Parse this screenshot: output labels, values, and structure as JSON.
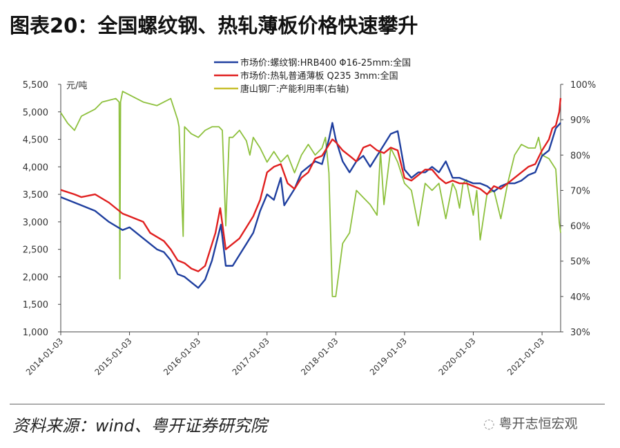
{
  "title": "图表20：全国螺纹钢、热轧薄板价格快速攀升",
  "source": "资料来源：wind、粤开证券研究院",
  "watermark": "粤开志恒宏观",
  "chart_data": {
    "type": "line",
    "title": "图表20：全国螺纹钢、热轧薄板价格快速攀升",
    "ylabel": "元/吨",
    "ylim": [
      1000,
      5500
    ],
    "y2lim": [
      30,
      100
    ],
    "yticks": [
      "1,000",
      "1,500",
      "2,000",
      "2,500",
      "3,000",
      "3,500",
      "4,000",
      "4,500",
      "5,000",
      "5,500"
    ],
    "y2ticks": [
      "30%",
      "40%",
      "50%",
      "60%",
      "70%",
      "80%",
      "90%",
      "100%"
    ],
    "xticks": [
      {
        "label": "2014-01-03",
        "t": 2014.0
      },
      {
        "label": "2015-01-03",
        "t": 2015.0
      },
      {
        "label": "2016-01-03",
        "t": 2016.0
      },
      {
        "label": "2017-01-03",
        "t": 2017.0
      },
      {
        "label": "2018-01-03",
        "t": 2018.0
      },
      {
        "label": "2019-01-03",
        "t": 2019.0
      },
      {
        "label": "2020-01-03",
        "t": 2020.0
      },
      {
        "label": "2021-01-03",
        "t": 2021.0
      }
    ],
    "xlim": [
      2014.0,
      2021.27
    ],
    "legend_position": "top-center",
    "series": [
      {
        "name": "市场价:螺纹钢:HRB400 Φ16-25mm:全国",
        "color": "#1f3f9f",
        "axis": "left",
        "x": [
          2014.0,
          2014.3,
          2014.5,
          2014.7,
          2014.9,
          2015.0,
          2015.2,
          2015.4,
          2015.5,
          2015.6,
          2015.7,
          2015.8,
          2015.9,
          2016.0,
          2016.1,
          2016.2,
          2016.33,
          2016.4,
          2016.5,
          2016.6,
          2016.7,
          2016.8,
          2016.9,
          2017.0,
          2017.1,
          2017.2,
          2017.25,
          2017.4,
          2017.5,
          2017.6,
          2017.7,
          2017.8,
          2017.9,
          2017.95,
          2018.0,
          2018.1,
          2018.2,
          2018.3,
          2018.4,
          2018.5,
          2018.6,
          2018.7,
          2018.8,
          2018.9,
          2019.0,
          2019.1,
          2019.2,
          2019.3,
          2019.4,
          2019.5,
          2019.6,
          2019.7,
          2019.8,
          2019.9,
          2020.0,
          2020.1,
          2020.2,
          2020.3,
          2020.4,
          2020.5,
          2020.6,
          2020.7,
          2020.8,
          2020.9,
          2021.0,
          2021.1,
          2021.2,
          2021.27
        ],
        "y": [
          3450,
          3300,
          3200,
          3000,
          2850,
          2900,
          2700,
          2500,
          2450,
          2300,
          2050,
          2000,
          1900,
          1800,
          1950,
          2300,
          2950,
          2200,
          2200,
          2400,
          2600,
          2800,
          3200,
          3500,
          3400,
          3800,
          3300,
          3600,
          3900,
          4000,
          4100,
          4050,
          4500,
          4800,
          4500,
          4100,
          3900,
          4100,
          4200,
          4000,
          4200,
          4400,
          4600,
          4650,
          3950,
          3800,
          3900,
          3900,
          4000,
          3900,
          4100,
          3800,
          3800,
          3750,
          3700,
          3700,
          3650,
          3550,
          3650,
          3700,
          3700,
          3750,
          3850,
          3900,
          4200,
          4300,
          4700,
          4800
        ]
      },
      {
        "name": "市场价:热轧普通薄板 Q235 3mm:全国",
        "color": "#e01f1f",
        "axis": "left",
        "x": [
          2014.0,
          2014.2,
          2014.3,
          2014.5,
          2014.7,
          2014.9,
          2015.0,
          2015.2,
          2015.3,
          2015.5,
          2015.6,
          2015.7,
          2015.8,
          2015.9,
          2016.0,
          2016.1,
          2016.25,
          2016.32,
          2016.4,
          2016.5,
          2016.6,
          2016.8,
          2016.9,
          2017.0,
          2017.1,
          2017.2,
          2017.3,
          2017.4,
          2017.5,
          2017.6,
          2017.7,
          2017.8,
          2017.9,
          2017.95,
          2018.0,
          2018.1,
          2018.2,
          2018.3,
          2018.4,
          2018.5,
          2018.6,
          2018.7,
          2018.8,
          2018.9,
          2019.0,
          2019.1,
          2019.2,
          2019.3,
          2019.4,
          2019.5,
          2019.6,
          2019.7,
          2019.8,
          2019.9,
          2020.0,
          2020.1,
          2020.2,
          2020.3,
          2020.4,
          2020.5,
          2020.6,
          2020.7,
          2020.8,
          2020.9,
          2021.0,
          2021.1,
          2021.15,
          2021.2,
          2021.25,
          2021.27
        ],
        "y": [
          3580,
          3500,
          3450,
          3500,
          3350,
          3150,
          3100,
          3000,
          2800,
          2650,
          2500,
          2300,
          2250,
          2150,
          2100,
          2200,
          2800,
          3250,
          2500,
          2600,
          2700,
          3100,
          3400,
          3900,
          4000,
          4050,
          3700,
          3600,
          3800,
          3900,
          4150,
          4200,
          4400,
          4500,
          4450,
          4300,
          4200,
          4100,
          4350,
          4400,
          4300,
          4250,
          4350,
          4300,
          3800,
          3750,
          3850,
          3950,
          3950,
          3800,
          3700,
          3750,
          3700,
          3700,
          3650,
          3600,
          3500,
          3650,
          3600,
          3700,
          3800,
          3900,
          4000,
          4050,
          4300,
          4500,
          4700,
          4750,
          5000,
          5250
        ]
      },
      {
        "name": "唐山钢厂:产能利用率(右轴)",
        "color": "#8dc03c",
        "axis": "right",
        "x": [
          2014.0,
          2014.1,
          2014.2,
          2014.3,
          2014.5,
          2014.6,
          2014.8,
          2014.85,
          2014.86,
          2014.87,
          2014.9,
          2015.0,
          2015.2,
          2015.4,
          2015.5,
          2015.6,
          2015.7,
          2015.72,
          2015.78,
          2015.8,
          2015.9,
          2016.0,
          2016.1,
          2016.2,
          2016.3,
          2016.35,
          2016.4,
          2016.45,
          2016.5,
          2016.6,
          2016.7,
          2016.75,
          2016.8,
          2016.9,
          2017.0,
          2017.1,
          2017.2,
          2017.3,
          2017.4,
          2017.5,
          2017.6,
          2017.7,
          2017.8,
          2017.85,
          2017.9,
          2017.95,
          2018.0,
          2018.1,
          2018.2,
          2018.3,
          2018.4,
          2018.5,
          2018.6,
          2018.65,
          2018.7,
          2018.8,
          2018.9,
          2019.0,
          2019.1,
          2019.2,
          2019.3,
          2019.4,
          2019.5,
          2019.6,
          2019.7,
          2019.75,
          2019.8,
          2019.85,
          2019.9,
          2020.0,
          2020.05,
          2020.1,
          2020.2,
          2020.3,
          2020.4,
          2020.5,
          2020.6,
          2020.7,
          2020.8,
          2020.9,
          2020.95,
          2021.0,
          2021.1,
          2021.2,
          2021.25,
          2021.27
        ],
        "y": [
          92,
          89,
          87,
          91,
          93,
          95,
          96,
          95,
          45,
          95,
          98,
          97,
          95,
          94,
          95,
          96,
          90,
          88,
          57,
          88,
          86,
          85,
          87,
          88,
          88,
          87,
          60,
          85,
          85,
          87,
          84,
          80,
          85,
          82,
          78,
          81,
          78,
          80,
          75,
          80,
          83,
          80,
          82,
          85,
          75,
          40,
          40,
          55,
          58,
          70,
          68,
          66,
          63,
          81,
          66,
          82,
          78,
          72,
          70,
          60,
          72,
          70,
          72,
          62,
          72,
          70,
          65,
          72,
          73,
          63,
          70,
          56,
          69,
          70,
          62,
          72,
          80,
          83,
          82,
          82,
          85,
          80,
          79,
          76,
          61,
          58
        ]
      }
    ]
  }
}
